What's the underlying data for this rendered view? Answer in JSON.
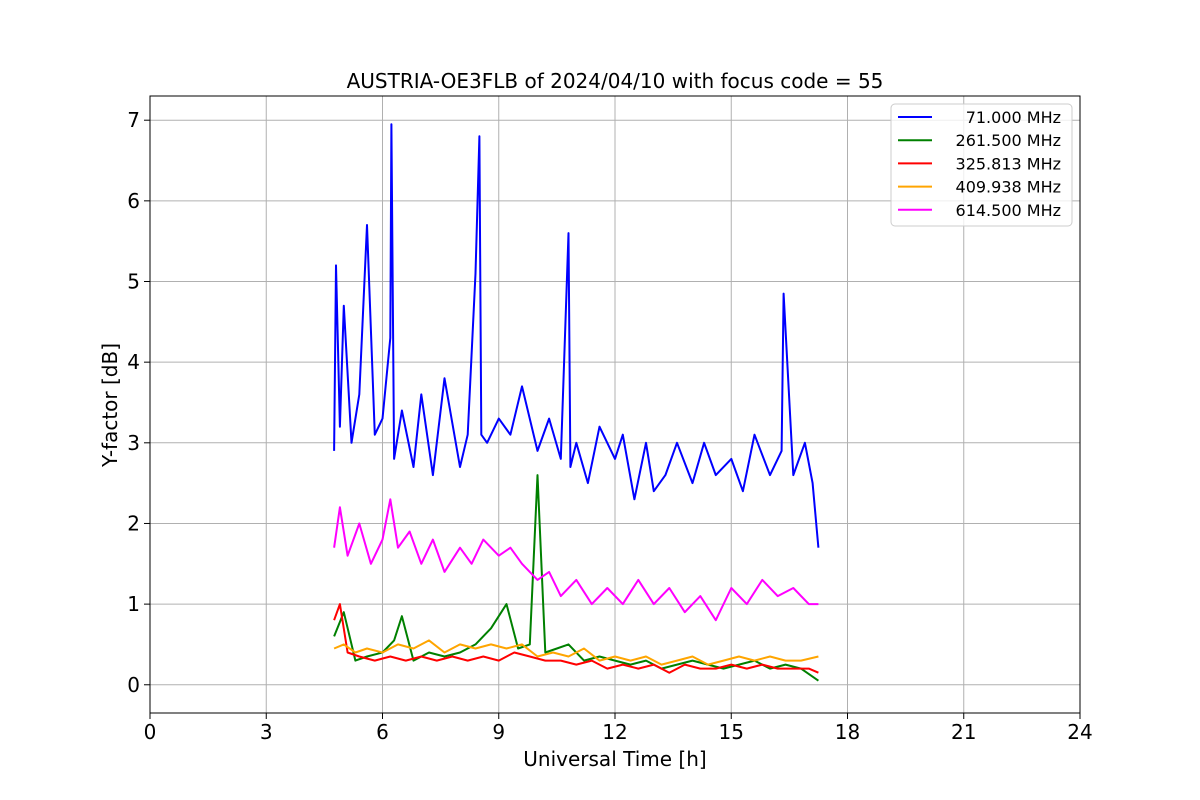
{
  "chart_data": {
    "type": "line",
    "title": "AUSTRIA-OE3FLB of 2024/04/10 with focus code = 55",
    "xlabel": "Universal Time [h]",
    "ylabel": "Y-factor [dB]",
    "xlim": [
      0,
      24
    ],
    "ylim": [
      -0.35,
      7.3
    ],
    "xticks": [
      "0",
      "3",
      "6",
      "9",
      "12",
      "15",
      "18",
      "21",
      "24"
    ],
    "yticks": [
      "0",
      "1",
      "2",
      "3",
      "4",
      "5",
      "6",
      "7"
    ],
    "grid": true,
    "legend_position": "top-right",
    "series": [
      {
        "name": "71.000 MHz",
        "color": "#0000ff",
        "x": [
          4.75,
          4.8,
          4.9,
          5.0,
          5.2,
          5.4,
          5.6,
          5.8,
          6.0,
          6.2,
          6.23,
          6.3,
          6.5,
          6.8,
          7.0,
          7.3,
          7.6,
          8.0,
          8.2,
          8.4,
          8.5,
          8.55,
          8.7,
          9.0,
          9.3,
          9.6,
          10.0,
          10.3,
          10.6,
          10.8,
          10.85,
          11.0,
          11.3,
          11.6,
          12.0,
          12.2,
          12.5,
          12.8,
          13.0,
          13.3,
          13.6,
          14.0,
          14.3,
          14.6,
          15.0,
          15.3,
          15.6,
          16.0,
          16.3,
          16.35,
          16.6,
          16.9,
          17.1,
          17.25
        ],
        "y": [
          2.9,
          5.2,
          3.2,
          4.7,
          3.0,
          3.6,
          5.7,
          3.1,
          3.3,
          4.3,
          6.95,
          2.8,
          3.4,
          2.7,
          3.6,
          2.6,
          3.8,
          2.7,
          3.1,
          5.1,
          6.8,
          3.1,
          3.0,
          3.3,
          3.1,
          3.7,
          2.9,
          3.3,
          2.8,
          5.6,
          2.7,
          3.0,
          2.5,
          3.2,
          2.8,
          3.1,
          2.3,
          3.0,
          2.4,
          2.6,
          3.0,
          2.5,
          3.0,
          2.6,
          2.8,
          2.4,
          3.1,
          2.6,
          2.9,
          4.85,
          2.6,
          3.0,
          2.5,
          1.7
        ]
      },
      {
        "name": "261.500 MHz",
        "color": "#008000",
        "x": [
          4.75,
          5.0,
          5.3,
          5.6,
          6.0,
          6.3,
          6.5,
          6.8,
          7.2,
          7.6,
          8.0,
          8.4,
          8.8,
          9.2,
          9.5,
          9.8,
          10.0,
          10.2,
          10.5,
          10.8,
          11.2,
          11.6,
          12.0,
          12.4,
          12.8,
          13.2,
          13.6,
          14.0,
          14.4,
          14.8,
          15.2,
          15.6,
          16.0,
          16.4,
          16.8,
          17.25
        ],
        "y": [
          0.6,
          0.9,
          0.3,
          0.35,
          0.4,
          0.55,
          0.85,
          0.3,
          0.4,
          0.35,
          0.4,
          0.5,
          0.7,
          1.0,
          0.45,
          0.5,
          2.6,
          0.4,
          0.45,
          0.5,
          0.3,
          0.35,
          0.3,
          0.25,
          0.3,
          0.2,
          0.25,
          0.3,
          0.25,
          0.2,
          0.25,
          0.3,
          0.2,
          0.25,
          0.2,
          0.05
        ]
      },
      {
        "name": "325.813 MHz",
        "color": "#ff0000",
        "x": [
          4.75,
          4.9,
          5.1,
          5.4,
          5.8,
          6.2,
          6.6,
          7.0,
          7.4,
          7.8,
          8.2,
          8.6,
          9.0,
          9.4,
          9.8,
          10.2,
          10.6,
          11.0,
          11.4,
          11.8,
          12.2,
          12.6,
          13.0,
          13.4,
          13.8,
          14.2,
          14.6,
          15.0,
          15.4,
          15.8,
          16.2,
          16.6,
          17.0,
          17.25
        ],
        "y": [
          0.8,
          1.0,
          0.4,
          0.35,
          0.3,
          0.35,
          0.3,
          0.35,
          0.3,
          0.35,
          0.3,
          0.35,
          0.3,
          0.4,
          0.35,
          0.3,
          0.3,
          0.25,
          0.3,
          0.2,
          0.25,
          0.2,
          0.25,
          0.15,
          0.25,
          0.2,
          0.2,
          0.25,
          0.2,
          0.25,
          0.2,
          0.2,
          0.2,
          0.15
        ]
      },
      {
        "name": "409.938 MHz",
        "color": "#ffa500",
        "x": [
          4.75,
          5.0,
          5.3,
          5.6,
          6.0,
          6.4,
          6.8,
          7.2,
          7.6,
          8.0,
          8.4,
          8.8,
          9.2,
          9.6,
          10.0,
          10.4,
          10.8,
          11.2,
          11.6,
          12.0,
          12.4,
          12.8,
          13.2,
          13.6,
          14.0,
          14.4,
          14.8,
          15.2,
          15.6,
          16.0,
          16.4,
          16.8,
          17.25
        ],
        "y": [
          0.45,
          0.5,
          0.4,
          0.45,
          0.4,
          0.5,
          0.45,
          0.55,
          0.4,
          0.5,
          0.45,
          0.5,
          0.45,
          0.5,
          0.35,
          0.4,
          0.35,
          0.45,
          0.3,
          0.35,
          0.3,
          0.35,
          0.25,
          0.3,
          0.35,
          0.25,
          0.3,
          0.35,
          0.3,
          0.35,
          0.3,
          0.3,
          0.35
        ]
      },
      {
        "name": "614.500 MHz",
        "color": "#ff00ff",
        "x": [
          4.75,
          4.9,
          5.1,
          5.4,
          5.7,
          6.0,
          6.2,
          6.4,
          6.7,
          7.0,
          7.3,
          7.6,
          8.0,
          8.3,
          8.6,
          9.0,
          9.3,
          9.6,
          10.0,
          10.3,
          10.6,
          11.0,
          11.4,
          11.8,
          12.2,
          12.6,
          13.0,
          13.4,
          13.8,
          14.2,
          14.6,
          15.0,
          15.4,
          15.8,
          16.2,
          16.6,
          17.0,
          17.25
        ],
        "y": [
          1.7,
          2.2,
          1.6,
          2.0,
          1.5,
          1.8,
          2.3,
          1.7,
          1.9,
          1.5,
          1.8,
          1.4,
          1.7,
          1.5,
          1.8,
          1.6,
          1.7,
          1.5,
          1.3,
          1.4,
          1.1,
          1.3,
          1.0,
          1.2,
          1.0,
          1.3,
          1.0,
          1.2,
          0.9,
          1.1,
          0.8,
          1.2,
          1.0,
          1.3,
          1.1,
          1.2,
          1.0,
          1.0
        ]
      }
    ]
  }
}
